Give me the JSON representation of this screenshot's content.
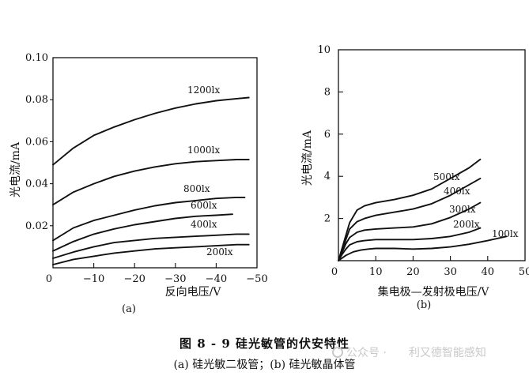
{
  "figure": {
    "caption": "图 8 - 9   硅光敏管的伏安特性",
    "subcaption": "(a) 硅光敏二极管；(b) 硅光敏晶体管",
    "watermark": {
      "left": "公众号 ·",
      "right": "利又德智能感知"
    }
  },
  "chart_data": [
    {
      "type": "line",
      "panel_label": "(a)",
      "xlabel": "反向电压/V",
      "ylabel": "光电流/mA",
      "xlim": [
        0,
        -50
      ],
      "ylim": [
        0,
        0.1
      ],
      "x_ticks": [
        "0",
        "−10",
        "−20",
        "−30",
        "−40",
        "−50"
      ],
      "y_ticks": [
        "0.02",
        "0.04",
        "0.06",
        "0.08",
        "0.10"
      ],
      "grid": false,
      "series": [
        {
          "name": "1200lx",
          "x": [
            0,
            -5,
            -10,
            -15,
            -20,
            -25,
            -30,
            -35,
            -40,
            -45,
            -48
          ],
          "y": [
            0.049,
            0.057,
            0.063,
            0.067,
            0.0705,
            0.0735,
            0.076,
            0.078,
            0.0795,
            0.0805,
            0.081
          ]
        },
        {
          "name": "1000lx",
          "x": [
            0,
            -5,
            -10,
            -15,
            -20,
            -25,
            -30,
            -35,
            -40,
            -45,
            -48
          ],
          "y": [
            0.03,
            0.036,
            0.04,
            0.0435,
            0.046,
            0.048,
            0.0495,
            0.0505,
            0.051,
            0.0515,
            0.0515
          ]
        },
        {
          "name": "800lx",
          "x": [
            0,
            -5,
            -10,
            -15,
            -20,
            -25,
            -30,
            -35,
            -40,
            -45,
            -47
          ],
          "y": [
            0.013,
            0.019,
            0.0225,
            0.025,
            0.0275,
            0.0295,
            0.031,
            0.032,
            0.033,
            0.0335,
            0.0335
          ]
        },
        {
          "name": "600lx",
          "x": [
            0,
            -5,
            -10,
            -15,
            -20,
            -25,
            -30,
            -35,
            -40,
            -44
          ],
          "y": [
            0.008,
            0.0125,
            0.016,
            0.0185,
            0.0205,
            0.022,
            0.0235,
            0.0245,
            0.025,
            0.0255
          ]
        },
        {
          "name": "400lx",
          "x": [
            0,
            -5,
            -10,
            -15,
            -20,
            -25,
            -30,
            -35,
            -40,
            -45,
            -48
          ],
          "y": [
            0.0045,
            0.0075,
            0.01,
            0.012,
            0.013,
            0.014,
            0.0145,
            0.015,
            0.0155,
            0.016,
            0.016
          ]
        },
        {
          "name": "200lx",
          "x": [
            0,
            -5,
            -10,
            -15,
            -20,
            -25,
            -30,
            -35,
            -40,
            -45,
            -48
          ],
          "y": [
            0.0015,
            0.004,
            0.0055,
            0.007,
            0.008,
            0.009,
            0.0095,
            0.01,
            0.0105,
            0.011,
            0.011
          ]
        }
      ]
    },
    {
      "type": "line",
      "panel_label": "(b)",
      "xlabel": "集电极—发射极电压/V",
      "ylabel": "光电流/mA",
      "xlim": [
        0,
        50
      ],
      "ylim": [
        0,
        10
      ],
      "x_ticks": [
        "0",
        "10",
        "20",
        "30",
        "40",
        "50"
      ],
      "y_ticks": [
        "2",
        "4",
        "6",
        "8",
        "10"
      ],
      "grid": false,
      "series": [
        {
          "name": "500lx",
          "x": [
            0,
            1,
            2,
            3,
            5,
            7,
            10,
            15,
            20,
            25,
            30,
            35,
            38
          ],
          "y": [
            0.0,
            0.6,
            1.2,
            1.8,
            2.4,
            2.6,
            2.75,
            2.9,
            3.1,
            3.4,
            3.9,
            4.4,
            4.8
          ]
        },
        {
          "name": "400lx",
          "x": [
            0,
            1,
            2,
            3,
            5,
            7,
            10,
            15,
            20,
            25,
            30,
            35,
            38
          ],
          "y": [
            0.0,
            0.5,
            1.0,
            1.5,
            1.85,
            2.0,
            2.15,
            2.3,
            2.45,
            2.7,
            3.1,
            3.6,
            3.9
          ]
        },
        {
          "name": "300lx",
          "x": [
            0,
            1,
            2,
            3,
            5,
            7,
            10,
            15,
            20,
            25,
            30,
            35,
            38
          ],
          "y": [
            0.0,
            0.4,
            0.8,
            1.1,
            1.35,
            1.45,
            1.5,
            1.55,
            1.6,
            1.75,
            2.05,
            2.45,
            2.75
          ]
        },
        {
          "name": "200lx",
          "x": [
            0,
            1,
            2,
            3,
            5,
            7,
            10,
            15,
            20,
            25,
            30,
            35,
            38
          ],
          "y": [
            0.0,
            0.3,
            0.55,
            0.75,
            0.9,
            0.95,
            1.0,
            1.0,
            1.0,
            1.05,
            1.15,
            1.35,
            1.55
          ]
        },
        {
          "name": "100lx",
          "x": [
            0,
            2,
            4,
            6,
            8,
            10,
            15,
            20,
            25,
            30,
            35,
            40,
            45
          ],
          "y": [
            0.0,
            0.25,
            0.42,
            0.5,
            0.55,
            0.58,
            0.58,
            0.55,
            0.58,
            0.65,
            0.78,
            0.95,
            1.15
          ]
        }
      ]
    }
  ]
}
